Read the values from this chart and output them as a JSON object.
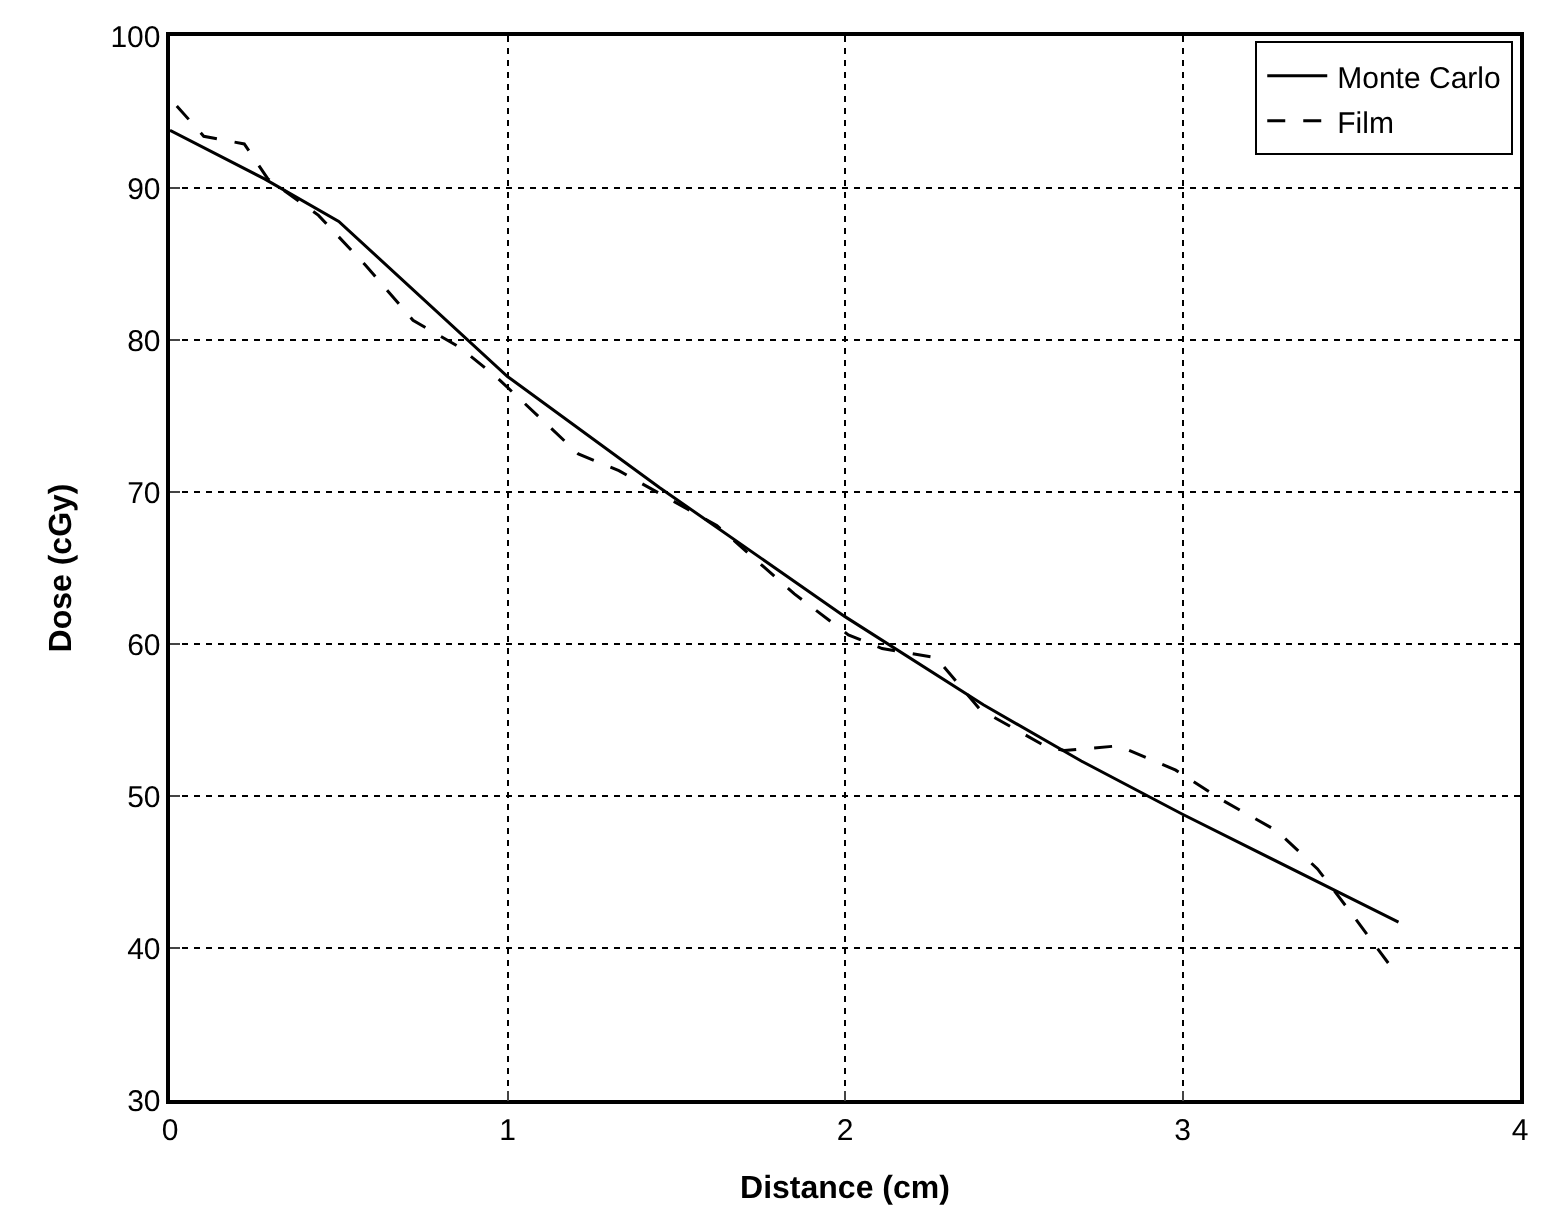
{
  "chart_data": {
    "type": "line",
    "xlabel": "Distance (cm)",
    "ylabel": "Dose (cGy)",
    "xlim": [
      0,
      4
    ],
    "ylim": [
      30,
      100
    ],
    "xticks": [
      0,
      1,
      2,
      3,
      4
    ],
    "yticks": [
      30,
      40,
      50,
      60,
      70,
      80,
      90,
      100
    ],
    "grid": true,
    "legend": "top right",
    "marker": "none",
    "series": [
      {
        "name": "Monte Carlo",
        "color": "#000000",
        "line_style": "solid",
        "x": [
          0,
          0.28,
          0.5,
          1,
          1.45,
          2,
          2.41,
          2.7,
          3,
          3.64
        ],
        "values": [
          93.8,
          90.6,
          87.8,
          77.6,
          70.3,
          61.8,
          56,
          52.3,
          48.8,
          41.7
        ]
      },
      {
        "name": "Film",
        "color": "#000000",
        "line_style": "dashed",
        "x": [
          0.02,
          0.1,
          0.22,
          0.29,
          0.44,
          0.58,
          0.72,
          0.86,
          0.97,
          1.11,
          1.21,
          1.33,
          1.62,
          1.85,
          2.01,
          2.11,
          2.27,
          2.4,
          2.6,
          2.65,
          2.81,
          2.98,
          3.12,
          3.28,
          3.4,
          3.5,
          3.62
        ],
        "values": [
          95.4,
          93.4,
          92.9,
          90.6,
          88.2,
          84.9,
          81.3,
          79.5,
          77.5,
          74.6,
          72.5,
          71.4,
          67.8,
          63.3,
          60.6,
          59.7,
          59.1,
          55.7,
          53.2,
          53,
          53.3,
          51.7,
          49.7,
          47.7,
          45.2,
          42.3,
          38.7
        ]
      }
    ]
  }
}
